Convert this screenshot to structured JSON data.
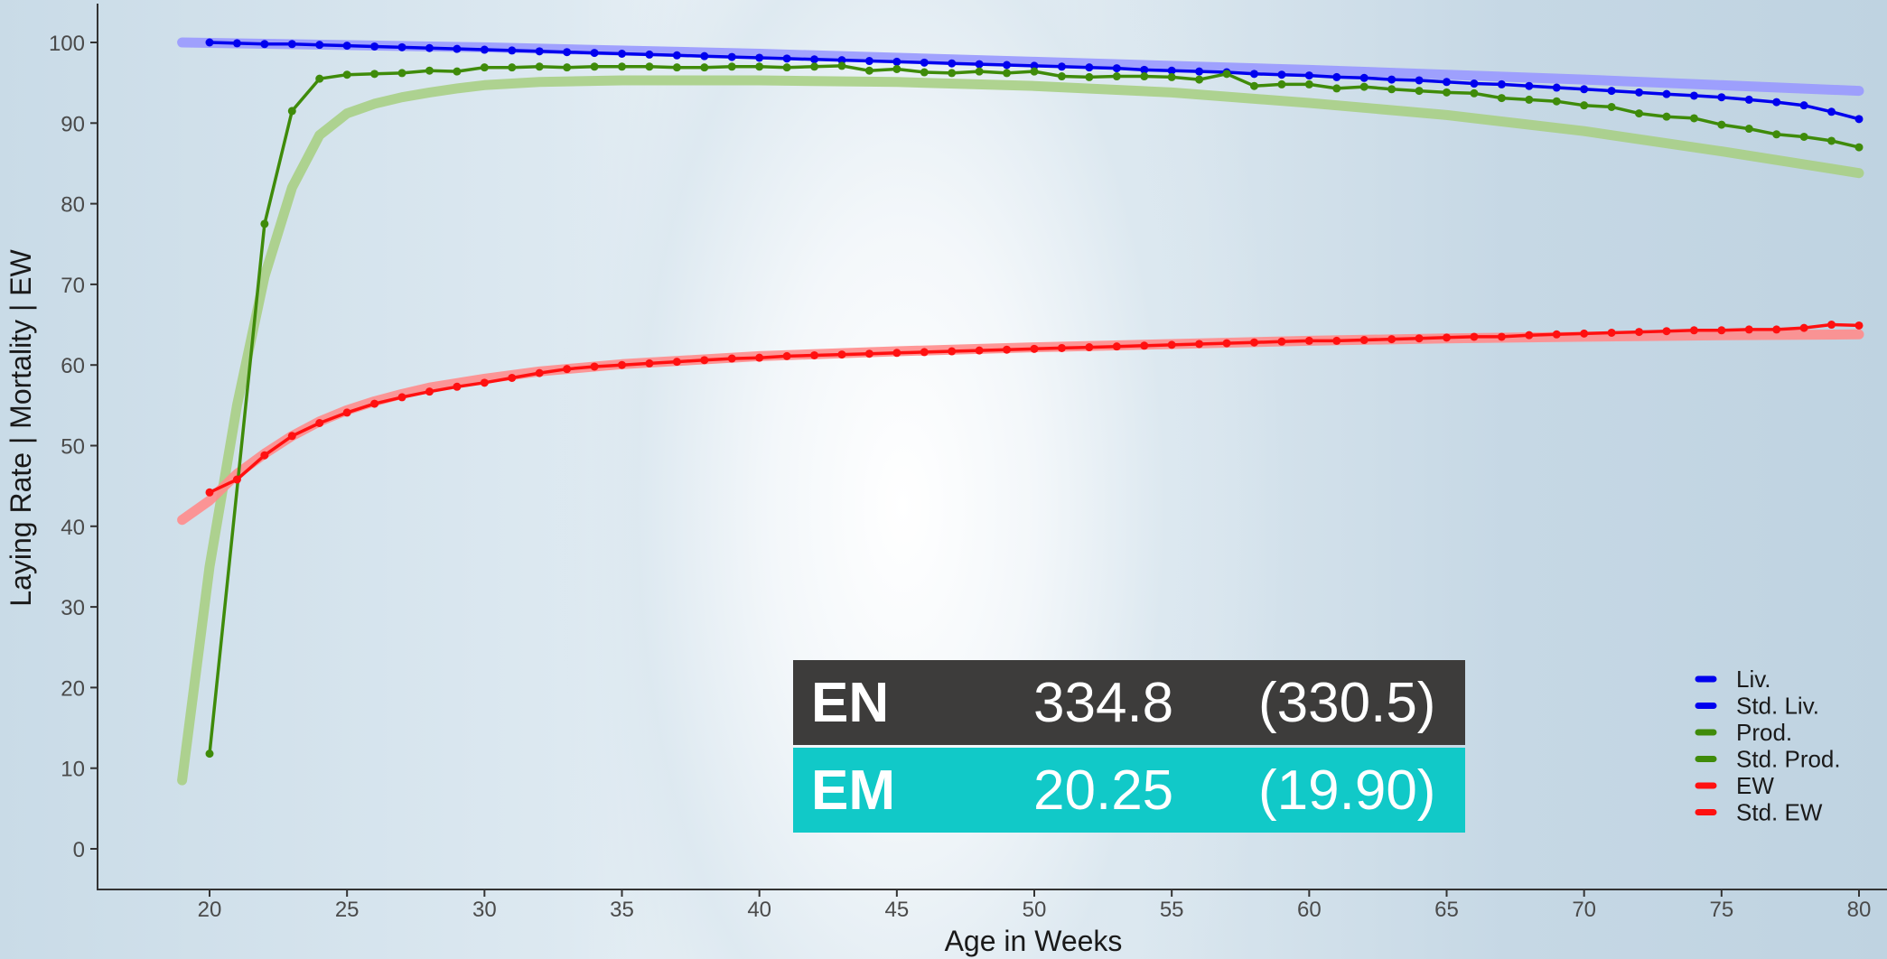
{
  "chart_data": {
    "type": "line",
    "xlabel": "Age in Weeks",
    "ylabel": "Laying Rate | Mortality | EW",
    "xlim": [
      15.8,
      80.5
    ],
    "ylim": [
      -5,
      105
    ],
    "x_ticks": [
      20,
      25,
      30,
      35,
      40,
      45,
      50,
      55,
      60,
      65,
      70,
      75,
      80
    ],
    "y_ticks": [
      0,
      10,
      20,
      30,
      40,
      50,
      60,
      70,
      80,
      90,
      100
    ],
    "grid": false,
    "legend_position": "bottom-right",
    "series": [
      {
        "name": "Liv.",
        "color": "#0000ee",
        "style": "line-markers",
        "x": [
          20,
          80
        ],
        "y": [
          100.0,
          90.5
        ],
        "points": [
          [
            20,
            100.0
          ],
          [
            21,
            99.9
          ],
          [
            22,
            99.8
          ],
          [
            23,
            99.8
          ],
          [
            24,
            99.7
          ],
          [
            25,
            99.6
          ],
          [
            26,
            99.5
          ],
          [
            27,
            99.4
          ],
          [
            28,
            99.3
          ],
          [
            29,
            99.2
          ],
          [
            30,
            99.1
          ],
          [
            31,
            99.0
          ],
          [
            32,
            98.9
          ],
          [
            33,
            98.8
          ],
          [
            34,
            98.7
          ],
          [
            35,
            98.6
          ],
          [
            36,
            98.5
          ],
          [
            37,
            98.4
          ],
          [
            38,
            98.3
          ],
          [
            39,
            98.2
          ],
          [
            40,
            98.1
          ],
          [
            41,
            98.0
          ],
          [
            42,
            97.9
          ],
          [
            43,
            97.8
          ],
          [
            44,
            97.7
          ],
          [
            45,
            97.6
          ],
          [
            46,
            97.5
          ],
          [
            47,
            97.4
          ],
          [
            48,
            97.3
          ],
          [
            49,
            97.2
          ],
          [
            50,
            97.1
          ],
          [
            51,
            97.0
          ],
          [
            52,
            96.9
          ],
          [
            53,
            96.8
          ],
          [
            54,
            96.6
          ],
          [
            55,
            96.5
          ],
          [
            56,
            96.4
          ],
          [
            57,
            96.3
          ],
          [
            58,
            96.1
          ],
          [
            59,
            96.0
          ],
          [
            60,
            95.9
          ],
          [
            61,
            95.7
          ],
          [
            62,
            95.6
          ],
          [
            63,
            95.4
          ],
          [
            64,
            95.3
          ],
          [
            65,
            95.1
          ],
          [
            66,
            94.9
          ],
          [
            67,
            94.8
          ],
          [
            68,
            94.6
          ],
          [
            69,
            94.4
          ],
          [
            70,
            94.2
          ],
          [
            71,
            94.0
          ],
          [
            72,
            93.8
          ],
          [
            73,
            93.6
          ],
          [
            74,
            93.4
          ],
          [
            75,
            93.2
          ],
          [
            76,
            92.9
          ],
          [
            77,
            92.6
          ],
          [
            78,
            92.2
          ],
          [
            79,
            91.4
          ],
          [
            80,
            90.5
          ]
        ]
      },
      {
        "name": "Std. Liv.",
        "color": "#9999ff",
        "style": "thick",
        "points": [
          [
            19,
            100.0
          ],
          [
            30,
            99.4
          ],
          [
            40,
            98.6
          ],
          [
            50,
            97.6
          ],
          [
            60,
            96.6
          ],
          [
            70,
            95.4
          ],
          [
            80,
            94.0
          ]
        ]
      },
      {
        "name": "Prod.",
        "color": "#3f8b0a",
        "style": "line-markers",
        "points": [
          [
            20,
            11.8
          ],
          [
            22,
            77.5
          ],
          [
            23,
            91.5
          ],
          [
            24,
            95.5
          ],
          [
            25,
            96.0
          ],
          [
            26,
            96.1
          ],
          [
            27,
            96.2
          ],
          [
            28,
            96.5
          ],
          [
            29,
            96.4
          ],
          [
            30,
            96.9
          ],
          [
            31,
            96.9
          ],
          [
            32,
            97.0
          ],
          [
            33,
            96.9
          ],
          [
            34,
            97.0
          ],
          [
            35,
            97.0
          ],
          [
            36,
            97.0
          ],
          [
            37,
            96.9
          ],
          [
            38,
            96.9
          ],
          [
            39,
            97.0
          ],
          [
            40,
            97.0
          ],
          [
            41,
            96.9
          ],
          [
            42,
            97.0
          ],
          [
            43,
            97.1
          ],
          [
            44,
            96.5
          ],
          [
            45,
            96.7
          ],
          [
            46,
            96.3
          ],
          [
            47,
            96.2
          ],
          [
            48,
            96.4
          ],
          [
            49,
            96.2
          ],
          [
            50,
            96.4
          ],
          [
            51,
            95.8
          ],
          [
            52,
            95.7
          ],
          [
            53,
            95.8
          ],
          [
            54,
            95.8
          ],
          [
            55,
            95.7
          ],
          [
            56,
            95.4
          ],
          [
            57,
            96.1
          ],
          [
            58,
            94.6
          ],
          [
            59,
            94.8
          ],
          [
            60,
            94.8
          ],
          [
            61,
            94.3
          ],
          [
            62,
            94.5
          ],
          [
            63,
            94.2
          ],
          [
            64,
            94.0
          ],
          [
            65,
            93.8
          ],
          [
            66,
            93.7
          ],
          [
            67,
            93.1
          ],
          [
            68,
            92.9
          ],
          [
            69,
            92.7
          ],
          [
            70,
            92.2
          ],
          [
            71,
            92.0
          ],
          [
            72,
            91.2
          ],
          [
            73,
            90.8
          ],
          [
            74,
            90.6
          ],
          [
            75,
            89.8
          ],
          [
            76,
            89.3
          ],
          [
            77,
            88.6
          ],
          [
            78,
            88.3
          ],
          [
            79,
            87.8
          ],
          [
            80,
            87.0
          ]
        ]
      },
      {
        "name": "Std. Prod.",
        "color": "#a9cf85",
        "style": "thick",
        "points": [
          [
            19,
            8.5
          ],
          [
            20,
            35.0
          ],
          [
            21,
            55.0
          ],
          [
            22,
            71.0
          ],
          [
            23,
            82.0
          ],
          [
            24,
            88.5
          ],
          [
            25,
            91.2
          ],
          [
            26,
            92.4
          ],
          [
            27,
            93.2
          ],
          [
            28,
            93.8
          ],
          [
            29,
            94.3
          ],
          [
            30,
            94.7
          ],
          [
            32,
            95.1
          ],
          [
            35,
            95.3
          ],
          [
            40,
            95.3
          ],
          [
            45,
            95.1
          ],
          [
            50,
            94.6
          ],
          [
            55,
            93.8
          ],
          [
            60,
            92.5
          ],
          [
            65,
            91.0
          ],
          [
            70,
            89.0
          ],
          [
            75,
            86.5
          ],
          [
            80,
            83.8
          ]
        ]
      },
      {
        "name": "EW",
        "color": "#ff1010",
        "style": "line-markers",
        "points": [
          [
            20,
            44.2
          ],
          [
            21,
            45.8
          ],
          [
            22,
            48.8
          ],
          [
            23,
            51.2
          ],
          [
            24,
            52.8
          ],
          [
            25,
            54.1
          ],
          [
            26,
            55.2
          ],
          [
            27,
            56.0
          ],
          [
            28,
            56.7
          ],
          [
            29,
            57.3
          ],
          [
            30,
            57.8
          ],
          [
            31,
            58.4
          ],
          [
            32,
            59.0
          ],
          [
            33,
            59.5
          ],
          [
            34,
            59.8
          ],
          [
            35,
            60.0
          ],
          [
            36,
            60.2
          ],
          [
            37,
            60.4
          ],
          [
            38,
            60.6
          ],
          [
            39,
            60.8
          ],
          [
            40,
            60.9
          ],
          [
            41,
            61.1
          ],
          [
            42,
            61.2
          ],
          [
            43,
            61.3
          ],
          [
            44,
            61.4
          ],
          [
            45,
            61.5
          ],
          [
            46,
            61.6
          ],
          [
            47,
            61.7
          ],
          [
            48,
            61.8
          ],
          [
            49,
            61.9
          ],
          [
            50,
            62.0
          ],
          [
            51,
            62.1
          ],
          [
            52,
            62.2
          ],
          [
            53,
            62.3
          ],
          [
            54,
            62.4
          ],
          [
            55,
            62.5
          ],
          [
            56,
            62.6
          ],
          [
            57,
            62.7
          ],
          [
            58,
            62.8
          ],
          [
            59,
            62.9
          ],
          [
            60,
            63.0
          ],
          [
            61,
            63.0
          ],
          [
            62,
            63.1
          ],
          [
            63,
            63.2
          ],
          [
            64,
            63.3
          ],
          [
            65,
            63.4
          ],
          [
            66,
            63.5
          ],
          [
            67,
            63.5
          ],
          [
            68,
            63.7
          ],
          [
            69,
            63.8
          ],
          [
            70,
            63.9
          ],
          [
            71,
            64.0
          ],
          [
            72,
            64.1
          ],
          [
            73,
            64.2
          ],
          [
            74,
            64.3
          ],
          [
            75,
            64.3
          ],
          [
            76,
            64.4
          ],
          [
            77,
            64.4
          ],
          [
            78,
            64.6
          ],
          [
            79,
            65.0
          ],
          [
            80,
            64.9
          ]
        ]
      },
      {
        "name": "Std. EW",
        "color": "#ff8c8c",
        "style": "thick",
        "points": [
          [
            19,
            40.8
          ],
          [
            20,
            43.2
          ],
          [
            21,
            46.5
          ],
          [
            22,
            49.0
          ],
          [
            23,
            51.2
          ],
          [
            24,
            53.0
          ],
          [
            25,
            54.4
          ],
          [
            26,
            55.5
          ],
          [
            27,
            56.4
          ],
          [
            28,
            57.2
          ],
          [
            30,
            58.3
          ],
          [
            32,
            59.2
          ],
          [
            35,
            60.1
          ],
          [
            40,
            61.1
          ],
          [
            45,
            61.7
          ],
          [
            50,
            62.2
          ],
          [
            55,
            62.6
          ],
          [
            60,
            63.0
          ],
          [
            65,
            63.3
          ],
          [
            70,
            63.5
          ],
          [
            75,
            63.7
          ],
          [
            80,
            63.8
          ]
        ]
      }
    ]
  },
  "stats": {
    "en": {
      "label": "EN",
      "value": "334.8",
      "std": "(330.5)",
      "bg": "#3d3c3b"
    },
    "em": {
      "label": "EM",
      "value": "20.25",
      "std": "(19.90)",
      "bg": "#11c9c8"
    }
  }
}
